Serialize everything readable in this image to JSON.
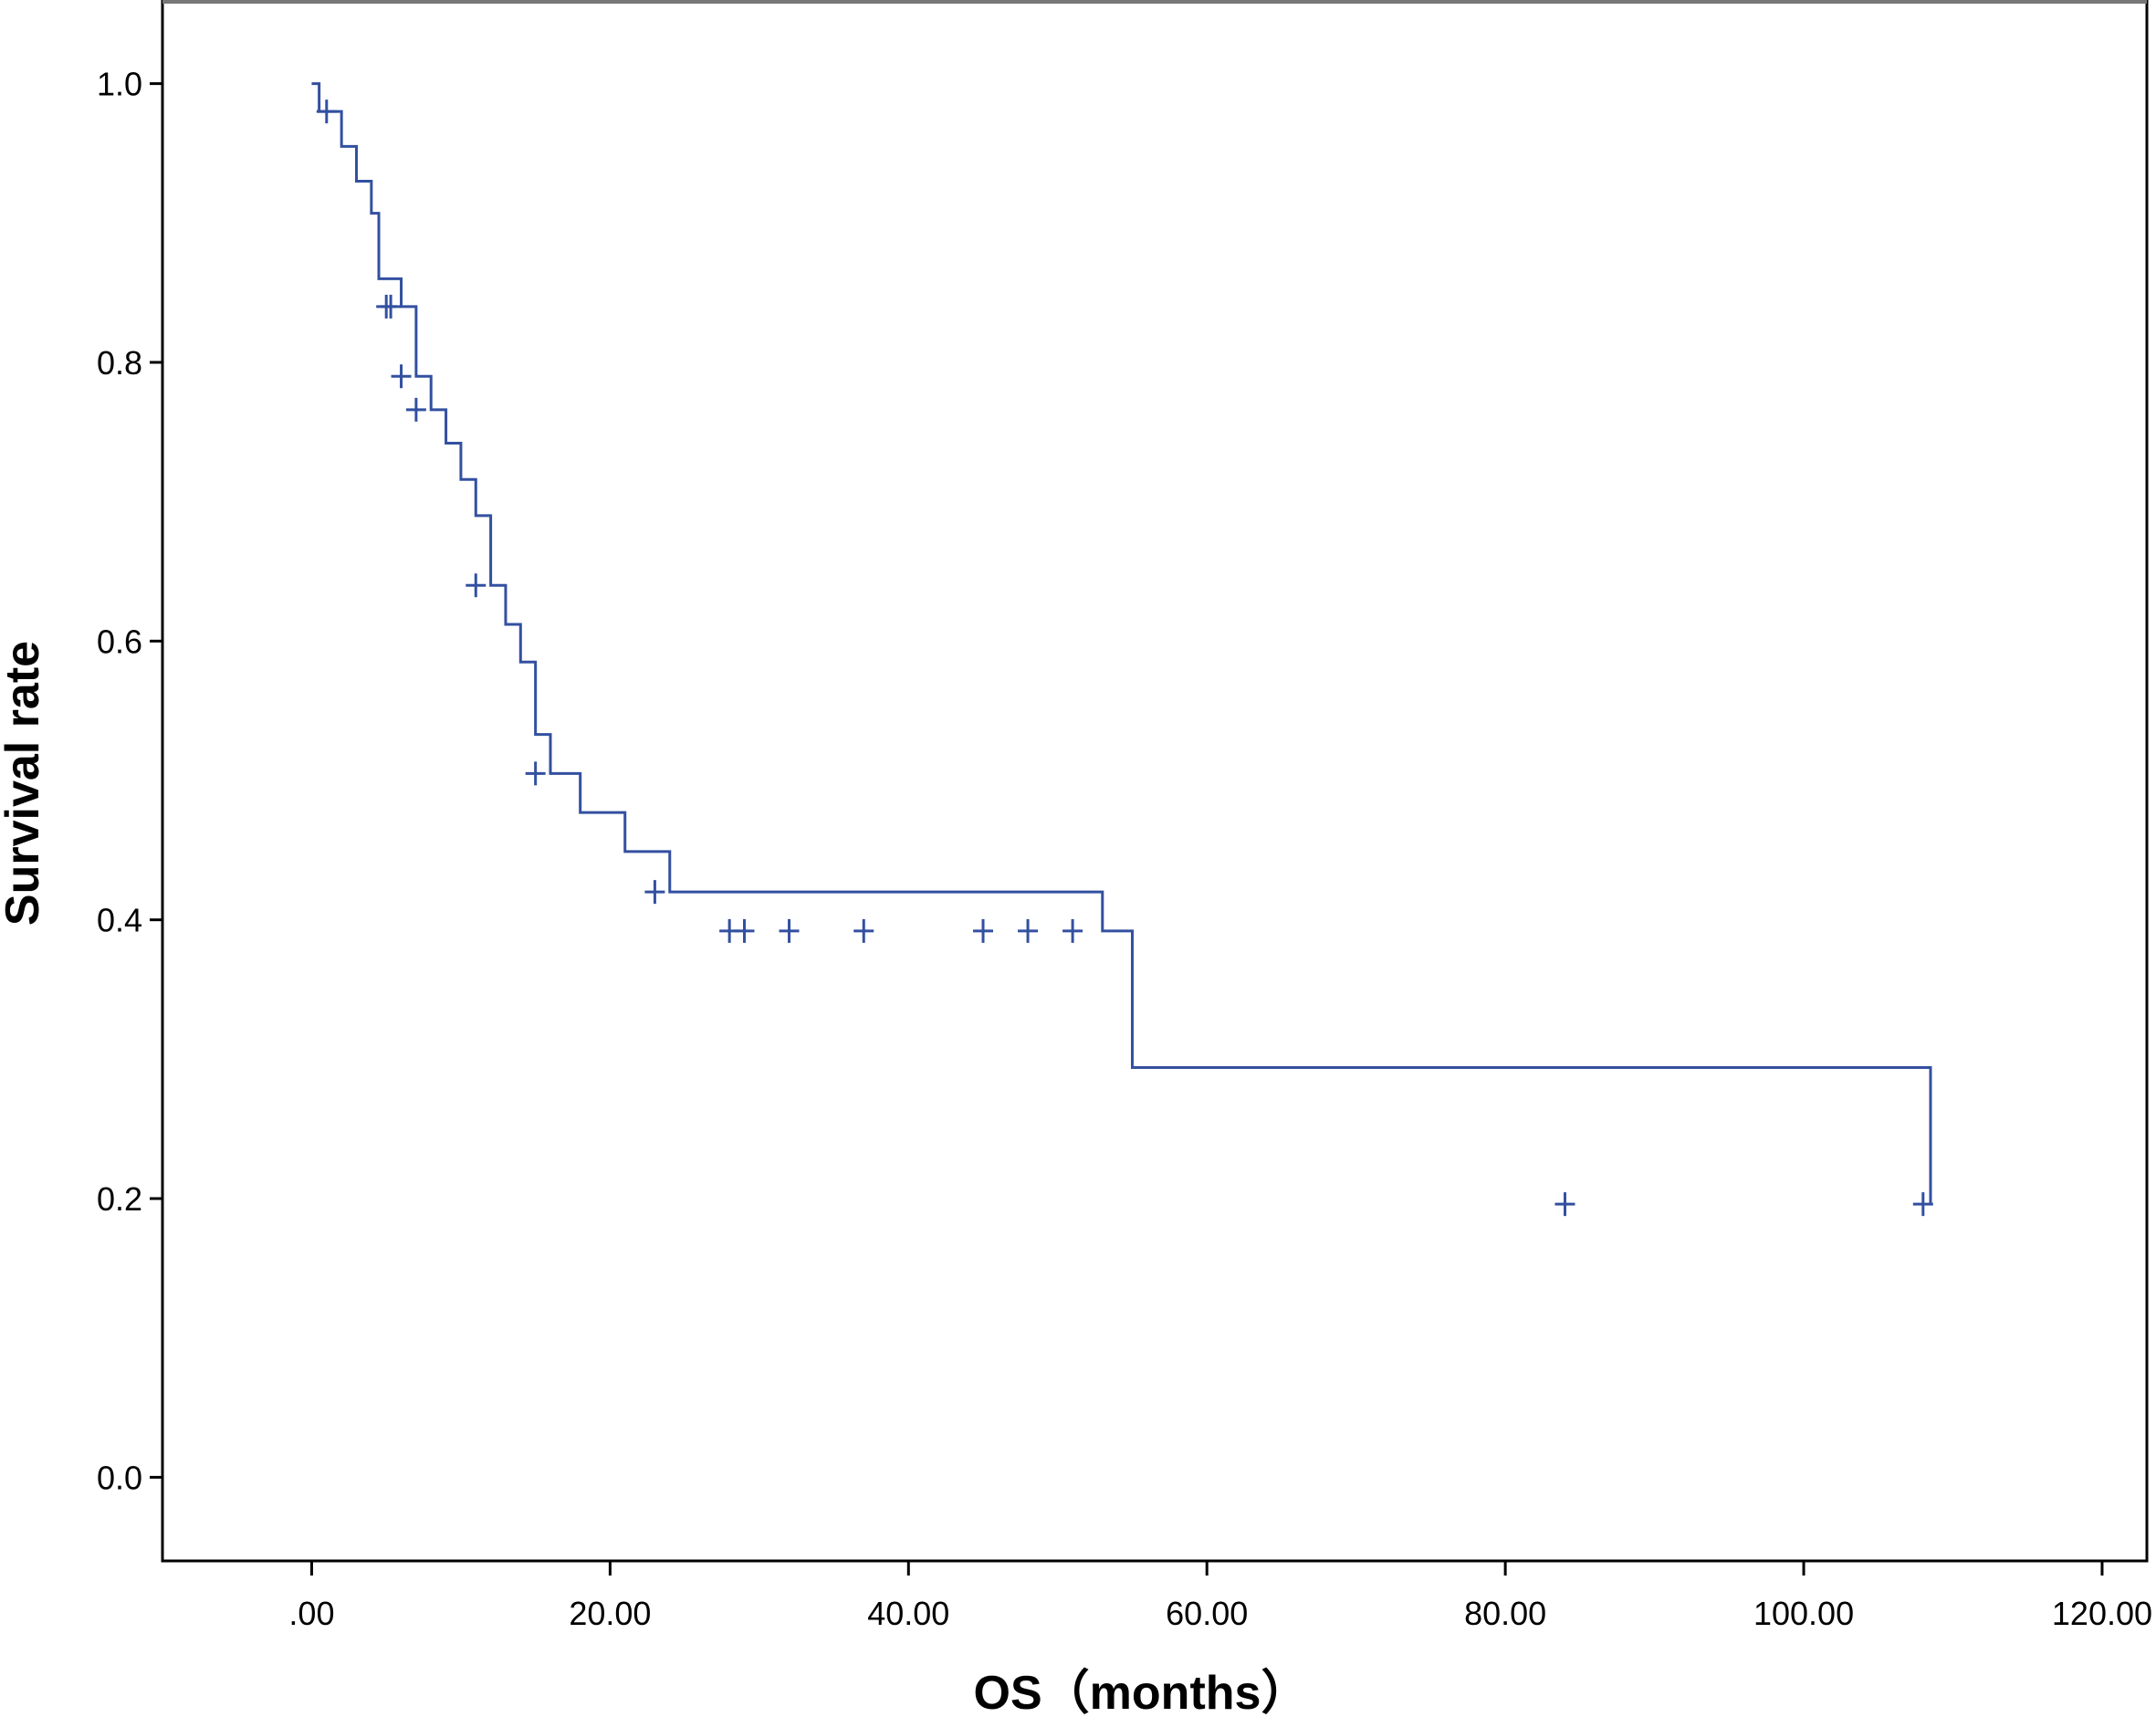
{
  "chart_data": {
    "type": "line",
    "subtype": "kaplan-meier step curve",
    "xlabel": "OS（months）",
    "ylabel": "Survival rate",
    "xlim": [
      -10,
      123
    ],
    "ylim": [
      -0.06,
      1.06
    ],
    "x_ticks": [
      0,
      20,
      40,
      60,
      80,
      100,
      120
    ],
    "x_tick_labels": [
      ".00",
      "20.00",
      "40.00",
      "60.00",
      "80.00",
      "100.00",
      "120.00"
    ],
    "y_ticks": [
      0,
      0.2,
      0.4,
      0.6,
      0.8,
      1.0
    ],
    "y_tick_labels": [
      "0.0",
      "0.2",
      "0.4",
      "0.6",
      "0.8",
      "1.0"
    ],
    "grid": false,
    "line_color": "#3350a0",
    "series": [
      {
        "steps": [
          [
            0,
            1.0
          ],
          [
            0.5,
            0.98
          ],
          [
            2.0,
            0.955
          ],
          [
            3.0,
            0.93
          ],
          [
            4.0,
            0.907
          ],
          [
            4.5,
            0.86
          ],
          [
            6.0,
            0.84
          ],
          [
            7.0,
            0.79
          ],
          [
            8.0,
            0.766
          ],
          [
            9.0,
            0.742
          ],
          [
            10.0,
            0.716
          ],
          [
            11.0,
            0.69
          ],
          [
            12.0,
            0.64
          ],
          [
            13.0,
            0.612
          ],
          [
            14.0,
            0.585
          ],
          [
            15.0,
            0.533
          ],
          [
            16.0,
            0.505
          ],
          [
            18.0,
            0.477
          ],
          [
            21.0,
            0.449
          ],
          [
            24.0,
            0.42
          ],
          [
            53.0,
            0.392
          ],
          [
            55.0,
            0.294
          ],
          [
            108.5,
            0.196
          ]
        ],
        "censored": [
          [
            1.0,
            0.98
          ],
          [
            5.0,
            0.84
          ],
          [
            5.3,
            0.84
          ],
          [
            6.0,
            0.79
          ],
          [
            7.0,
            0.766
          ],
          [
            11.0,
            0.64
          ],
          [
            15.0,
            0.505
          ],
          [
            23.0,
            0.42
          ],
          [
            28.0,
            0.392
          ],
          [
            29.0,
            0.392
          ],
          [
            32.0,
            0.392
          ],
          [
            37.0,
            0.392
          ],
          [
            45.0,
            0.392
          ],
          [
            48.0,
            0.392
          ],
          [
            51.0,
            0.392
          ],
          [
            84.0,
            0.196
          ],
          [
            108.0,
            0.196
          ]
        ]
      }
    ]
  }
}
